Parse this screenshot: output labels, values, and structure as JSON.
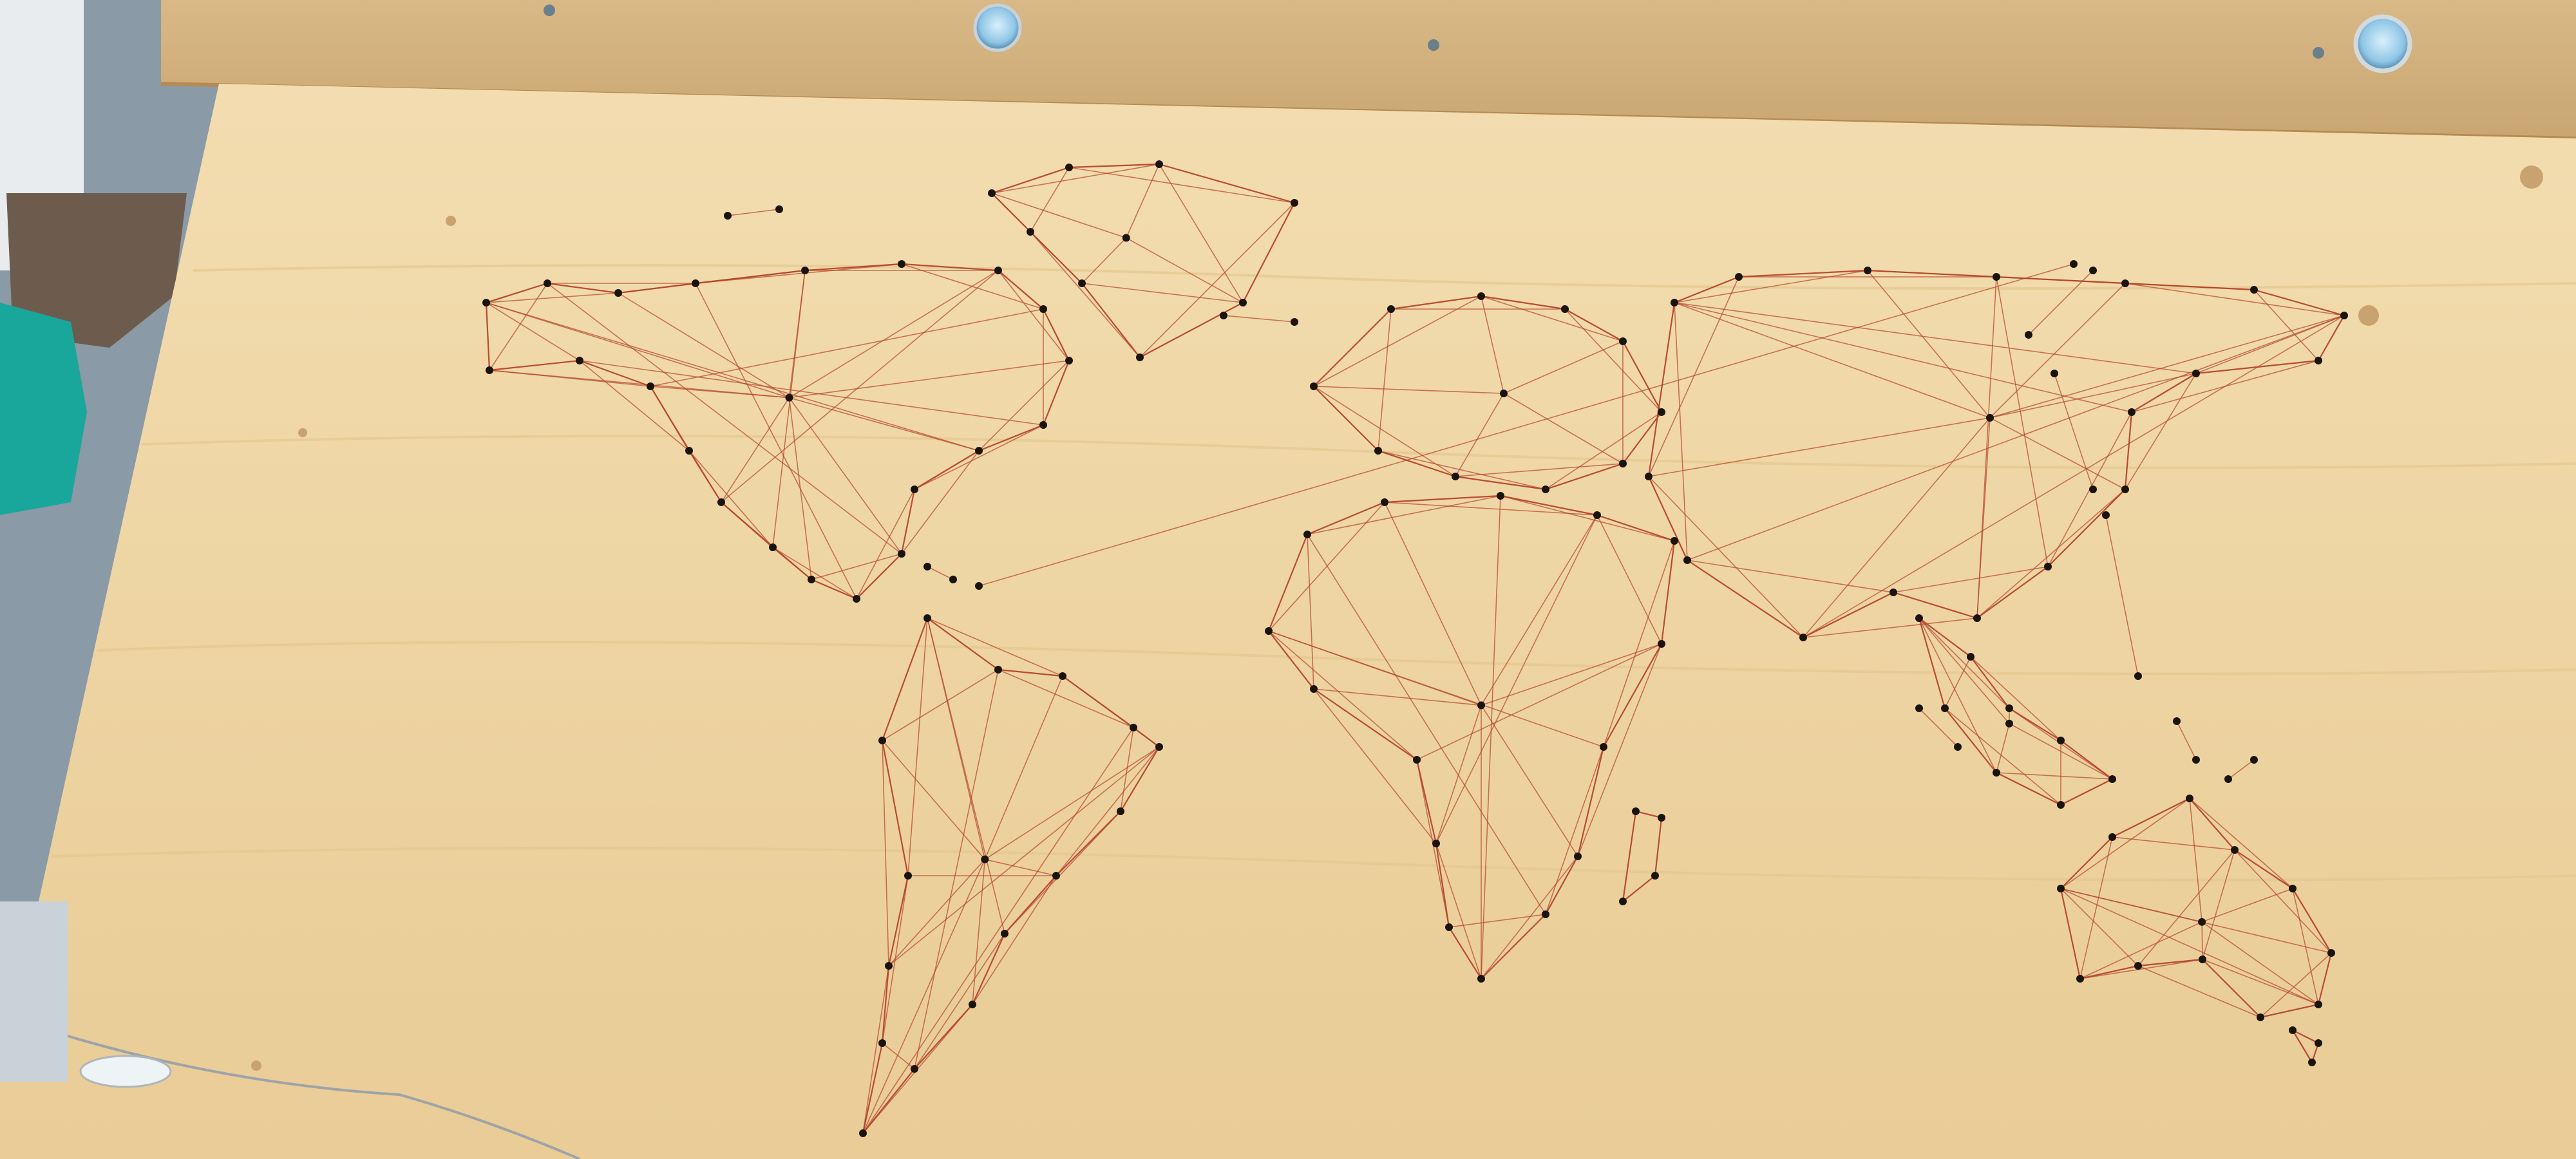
{
  "photo": {
    "subject": "",
    "colors": {
      "background": "#8a9aa6",
      "shelf": "#d2b27e",
      "board": "#efd7a8",
      "board_shade": "#e6c993",
      "string": "#b5452a",
      "nail": "#1a1410",
      "knot": "#c9a271",
      "button": "#8fc6e6"
    }
  },
  "map": {
    "regions": [
      "north-america",
      "greenland",
      "south-america",
      "europe",
      "africa",
      "madagascar",
      "asia",
      "southeast-asia",
      "australia",
      "new-zealand"
    ]
  }
}
